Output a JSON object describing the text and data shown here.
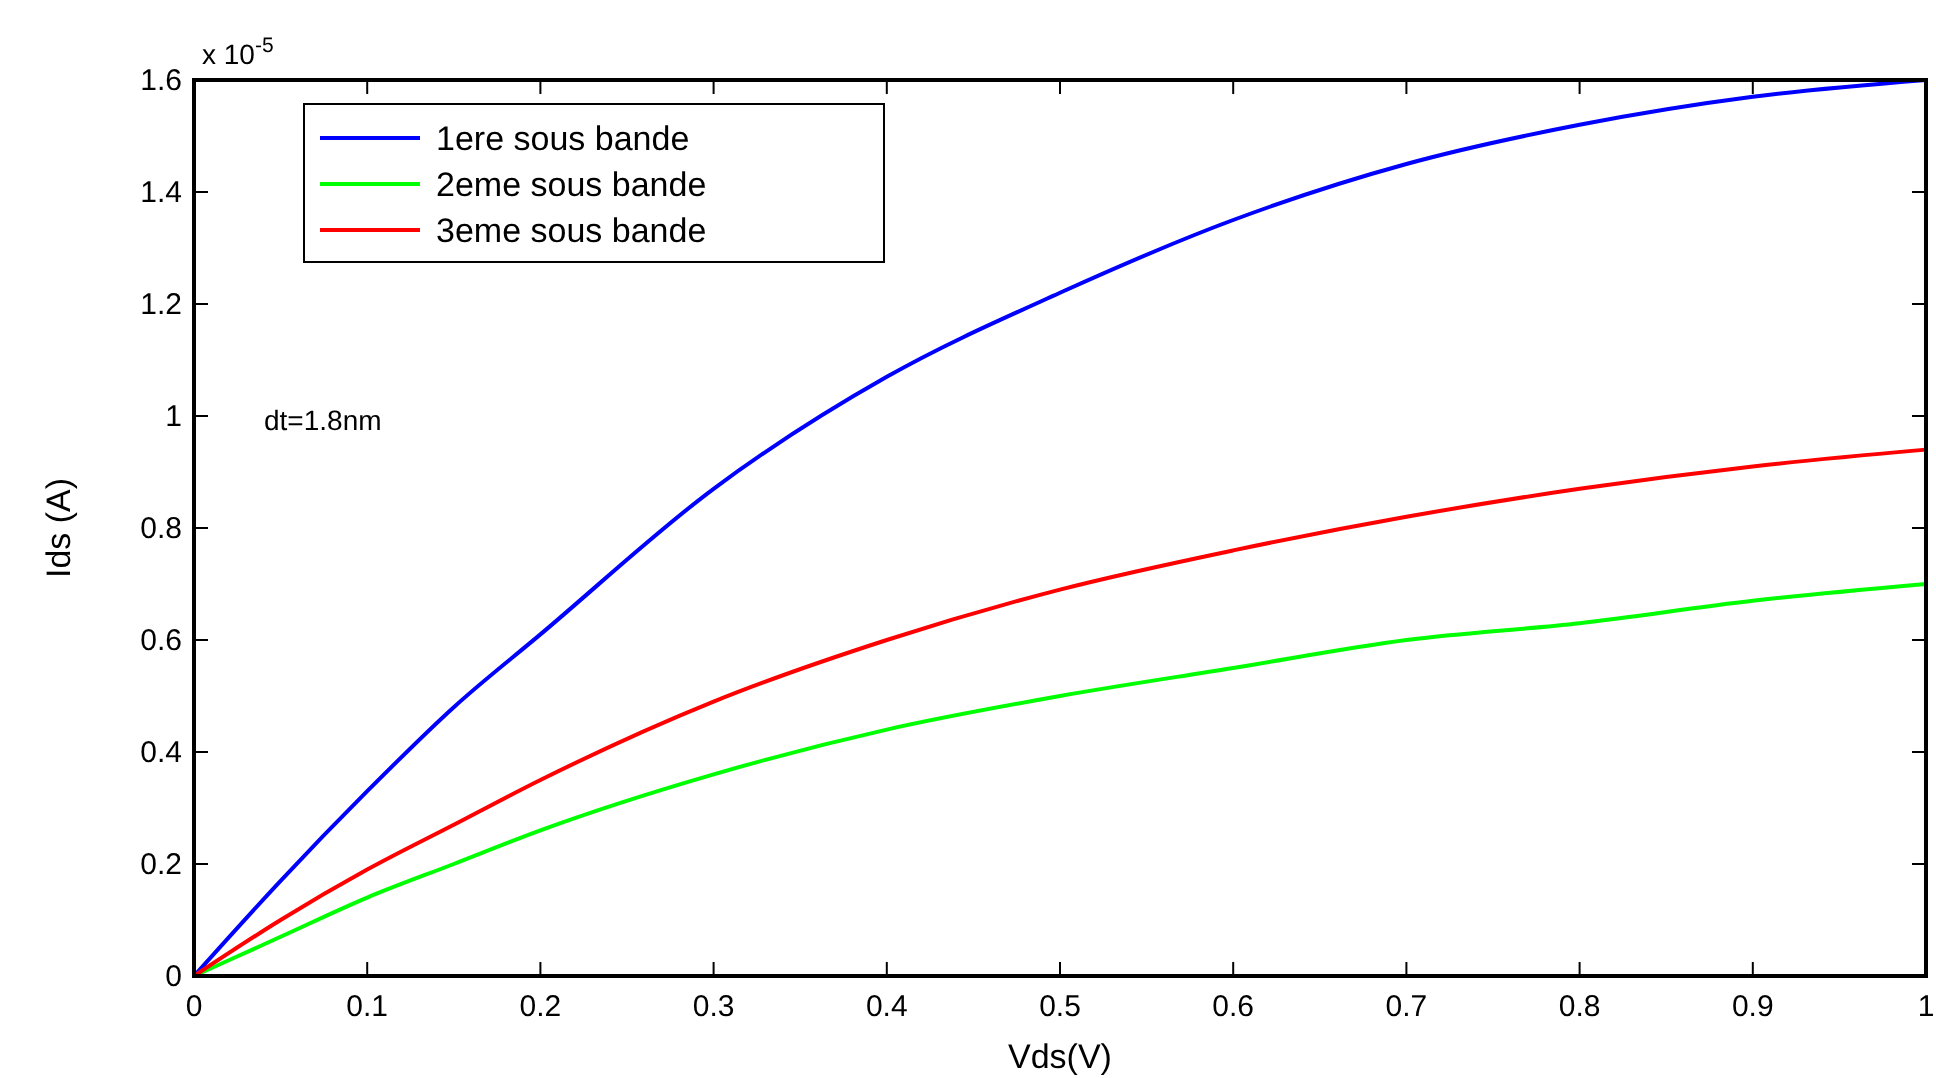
{
  "chart_data": {
    "type": "line",
    "xlabel": "Vds(V)",
    "ylabel": "Ids (A)",
    "x": [
      0,
      0.05,
      0.1,
      0.15,
      0.2,
      0.3,
      0.4,
      0.5,
      0.6,
      0.7,
      0.8,
      0.9,
      1
    ],
    "series": [
      {
        "name": "1ere sous bande",
        "color": "#0000ff",
        "values": [
          0,
          0.17,
          0.33,
          0.48,
          0.61,
          0.87,
          1.07,
          1.22,
          1.35,
          1.45,
          1.52,
          1.57,
          1.6
        ]
      },
      {
        "name": "2eme sous bande",
        "color": "#00ff00",
        "values": [
          0,
          0.07,
          0.14,
          0.2,
          0.26,
          0.36,
          0.44,
          0.5,
          0.55,
          0.6,
          0.63,
          0.67,
          0.7
        ]
      },
      {
        "name": "3eme sous bande",
        "color": "#ff0000",
        "values": [
          0,
          0.1,
          0.19,
          0.27,
          0.35,
          0.49,
          0.6,
          0.69,
          0.76,
          0.82,
          0.87,
          0.91,
          0.94
        ]
      }
    ],
    "xlim": [
      0,
      1
    ],
    "ylim": [
      0,
      1.6
    ],
    "xticks": [
      0,
      0.1,
      0.2,
      0.3,
      0.4,
      0.5,
      0.6,
      0.7,
      0.8,
      0.9,
      1
    ],
    "yticks": [
      0,
      0.2,
      0.4,
      0.6,
      0.8,
      1,
      1.2,
      1.4,
      1.6
    ],
    "legend": "top left",
    "grid": false,
    "line_style": "solid",
    "annotations": [
      "x 10$^{-5}$",
      "dt=1.8nm"
    ]
  }
}
